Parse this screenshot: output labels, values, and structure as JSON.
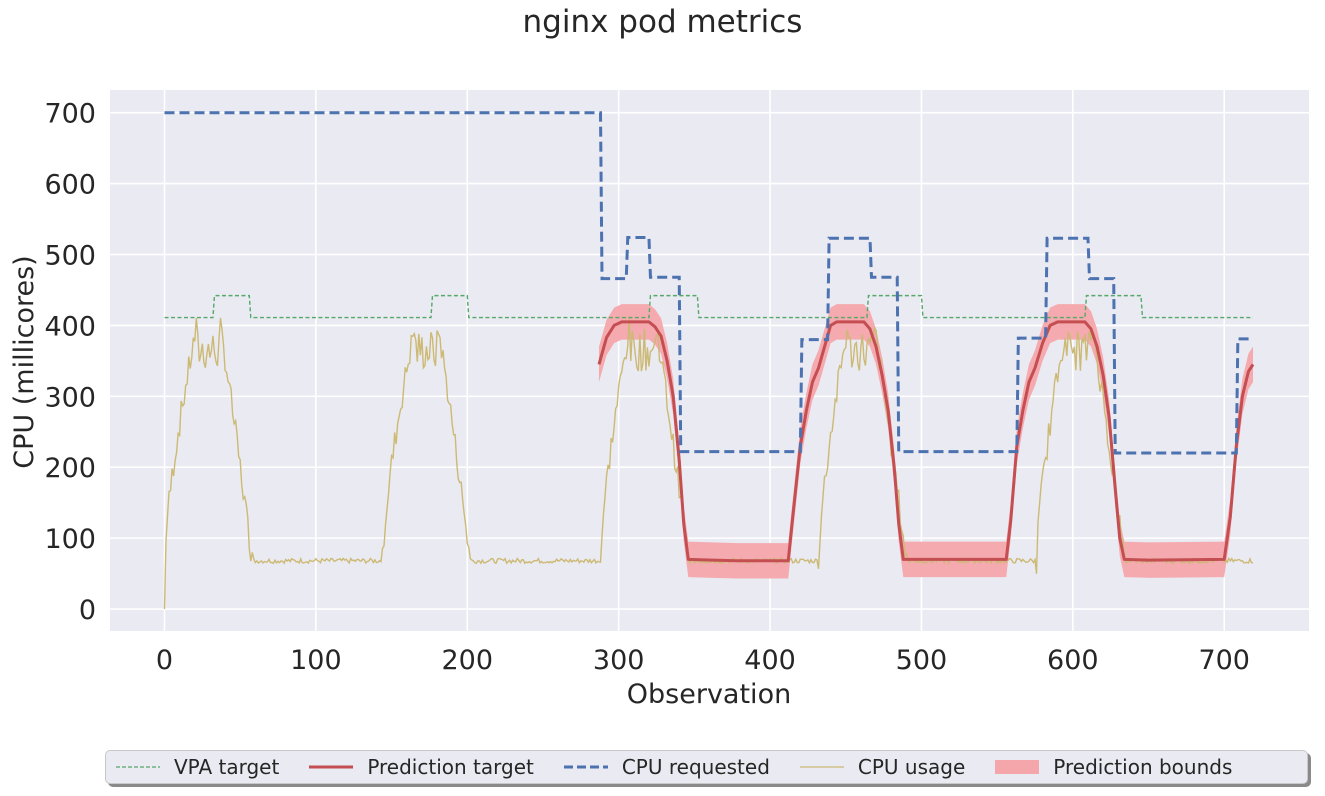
{
  "chart_data": {
    "type": "line",
    "title": "nginx pod metrics",
    "xlabel": "Observation",
    "ylabel": "CPU (millicores)",
    "xlim": [
      -36,
      756
    ],
    "ylim": [
      -31,
      732
    ],
    "x_ticks": [
      "0",
      "100",
      "200",
      "300",
      "400",
      "500",
      "600",
      "700"
    ],
    "y_ticks": [
      "0",
      "100",
      "200",
      "300",
      "400",
      "500",
      "600",
      "700"
    ],
    "grid": true,
    "legend_position": "bottom",
    "series": [
      {
        "name": "VPA target",
        "color": "#55a868",
        "style": "dashed-thin",
        "points": [
          [
            0,
            411
          ],
          [
            32,
            411
          ],
          [
            33,
            442
          ],
          [
            56,
            442
          ],
          [
            57,
            411
          ],
          [
            176,
            411
          ],
          [
            177,
            442
          ],
          [
            200,
            442
          ],
          [
            201,
            411
          ],
          [
            320,
            411
          ],
          [
            321,
            442
          ],
          [
            352,
            442
          ],
          [
            353,
            411
          ],
          [
            464,
            411
          ],
          [
            465,
            442
          ],
          [
            500,
            442
          ],
          [
            501,
            411
          ],
          [
            608,
            411
          ],
          [
            609,
            442
          ],
          [
            645,
            442
          ],
          [
            646,
            411
          ],
          [
            719,
            411
          ]
        ]
      },
      {
        "name": "Prediction target",
        "color": "#c44e52",
        "style": "solid",
        "segments": [
          [
            [
              287,
              345
            ],
            [
              292,
              383
            ],
            [
              297,
              400
            ],
            [
              302,
              405
            ],
            [
              320,
              405
            ],
            [
              324,
              398
            ],
            [
              328,
              385
            ],
            [
              332,
              350
            ],
            [
              336,
              300
            ],
            [
              340,
              210
            ],
            [
              343,
              120
            ],
            [
              346,
              70
            ],
            [
              362,
              69
            ],
            [
              378,
              68
            ],
            [
              412,
              68
            ],
            [
              415,
              130
            ],
            [
              420,
              230
            ],
            [
              424,
              280
            ],
            [
              428,
              320
            ],
            [
              432,
              340
            ],
            [
              436,
              370
            ],
            [
              440,
              400
            ],
            [
              444,
              405
            ],
            [
              462,
              405
            ],
            [
              466,
              395
            ],
            [
              470,
              370
            ],
            [
              474,
              330
            ],
            [
              478,
              280
            ],
            [
              482,
              200
            ],
            [
              485,
              120
            ],
            [
              488,
              70
            ],
            [
              520,
              70
            ],
            [
              556,
              70
            ],
            [
              559,
              125
            ],
            [
              563,
              230
            ],
            [
              567,
              280
            ],
            [
              571,
              320
            ],
            [
              575,
              340
            ],
            [
              580,
              375
            ],
            [
              585,
              400
            ],
            [
              590,
              405
            ],
            [
              608,
              405
            ],
            [
              612,
              395
            ],
            [
              616,
              370
            ],
            [
              620,
              330
            ],
            [
              624,
              270
            ],
            [
              628,
              170
            ],
            [
              631,
              100
            ],
            [
              634,
              70
            ],
            [
              650,
              69
            ],
            [
              700,
              70
            ],
            [
              704,
              130
            ],
            [
              708,
              230
            ],
            [
              712,
              300
            ],
            [
              716,
              335
            ],
            [
              719,
              345
            ]
          ]
        ]
      },
      {
        "name": "CPU requested",
        "color": "#4c72b0",
        "style": "dashed",
        "points": [
          [
            0,
            700
          ],
          [
            288,
            700
          ],
          [
            289,
            466
          ],
          [
            305,
            466
          ],
          [
            306,
            524
          ],
          [
            320,
            524
          ],
          [
            321,
            468
          ],
          [
            340,
            468
          ],
          [
            341,
            222
          ],
          [
            420,
            222
          ],
          [
            421,
            380
          ],
          [
            438,
            380
          ],
          [
            439,
            523
          ],
          [
            466,
            523
          ],
          [
            467,
            468
          ],
          [
            484,
            468
          ],
          [
            485,
            222
          ],
          [
            563,
            222
          ],
          [
            564,
            382
          ],
          [
            582,
            382
          ],
          [
            583,
            523
          ],
          [
            610,
            523
          ],
          [
            611,
            466
          ],
          [
            627,
            466
          ],
          [
            628,
            220
          ],
          [
            708,
            220
          ],
          [
            709,
            381
          ],
          [
            719,
            381
          ]
        ]
      },
      {
        "name": "CPU usage",
        "color": "#ccb974",
        "style": "solid-thin",
        "cycles": [
          {
            "start": 0,
            "peak_start": 22,
            "peak_end": 36,
            "end": 58
          },
          {
            "start": 144,
            "peak_start": 166,
            "peak_end": 180,
            "end": 202
          },
          {
            "start": 288,
            "peak_start": 308,
            "peak_end": 324,
            "end": 346
          },
          {
            "start": 432,
            "peak_start": 452,
            "peak_end": 468,
            "end": 490
          },
          {
            "start": 576,
            "peak_start": 596,
            "peak_end": 612,
            "end": 634
          }
        ],
        "baseline": 68,
        "peak": 405,
        "x_max": 719
      },
      {
        "name": "Prediction bounds",
        "color": "#f4a6aa",
        "style": "band",
        "offset": 25
      }
    ]
  }
}
